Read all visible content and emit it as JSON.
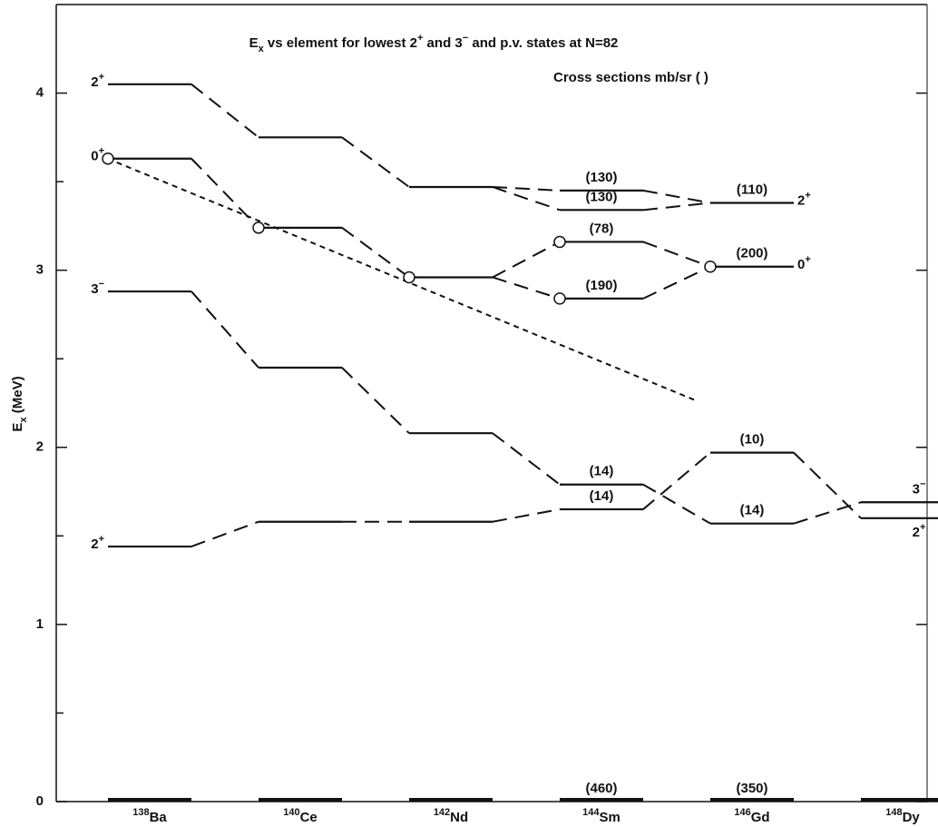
{
  "chart_data": {
    "type": "level-scheme",
    "title": [
      {
        "t": "E"
      },
      {
        "t": "x",
        "s": "sub"
      },
      {
        "t": " vs  element for lowest 2"
      },
      {
        "t": "+",
        "s": "sup"
      },
      {
        "t": " and 3"
      },
      {
        "t": "−",
        "s": "sup"
      },
      {
        "t": " and p.v. states at N=82"
      }
    ],
    "note": "Cross sections mb/sr (    )",
    "y_label": [
      {
        "t": "E"
      },
      {
        "t": "x",
        "s": "sub"
      },
      {
        "t": " (MeV)"
      }
    ],
    "categories": [
      {
        "mass": "138",
        "element": "Ba"
      },
      {
        "mass": "140",
        "element": "Ce"
      },
      {
        "mass": "142",
        "element": "Nd"
      },
      {
        "mass": "144",
        "element": "Sm"
      },
      {
        "mass": "146",
        "element": "Gd"
      },
      {
        "mass": "148",
        "element": "Dy"
      }
    ],
    "ylim": [
      0,
      4.5
    ],
    "yticks": [
      0,
      1,
      2,
      3,
      4
    ],
    "minor_yticks": [
      0.5,
      1.5,
      2.5,
      3.5
    ],
    "color": "#111111",
    "levels": [
      {
        "nucleus": 0,
        "energy": 4.05,
        "spin": {
          "j": "2",
          "p": "+"
        },
        "spin_pos": "left"
      },
      {
        "nucleus": 0,
        "energy": 3.63,
        "spin": {
          "j": "0",
          "p": "+"
        },
        "spin_pos": "left",
        "pv": true
      },
      {
        "nucleus": 0,
        "energy": 2.88,
        "spin": {
          "j": "3",
          "p": "−"
        },
        "spin_pos": "left"
      },
      {
        "nucleus": 0,
        "energy": 1.44,
        "spin": {
          "j": "2",
          "p": "+"
        },
        "spin_pos": "left"
      },
      {
        "nucleus": 0,
        "energy": 0
      },
      {
        "nucleus": 1,
        "energy": 3.75
      },
      {
        "nucleus": 1,
        "energy": 3.24,
        "pv": true
      },
      {
        "nucleus": 1,
        "energy": 2.45
      },
      {
        "nucleus": 1,
        "energy": 1.58
      },
      {
        "nucleus": 1,
        "energy": 0
      },
      {
        "nucleus": 2,
        "energy": 3.47
      },
      {
        "nucleus": 2,
        "energy": 2.96,
        "pv": true
      },
      {
        "nucleus": 2,
        "energy": 2.08
      },
      {
        "nucleus": 2,
        "energy": 1.58
      },
      {
        "nucleus": 2,
        "energy": 0
      },
      {
        "nucleus": 3,
        "energy": 3.45,
        "cross_section": "(130)"
      },
      {
        "nucleus": 3,
        "energy": 3.34,
        "cross_section": "(130)"
      },
      {
        "nucleus": 3,
        "energy": 3.16,
        "cross_section": "(78)",
        "pv": true
      },
      {
        "nucleus": 3,
        "energy": 2.84,
        "cross_section": "(190)",
        "pv": true
      },
      {
        "nucleus": 3,
        "energy": 1.79,
        "cross_section": "(14)"
      },
      {
        "nucleus": 3,
        "energy": 1.65,
        "cross_section": "(14)"
      },
      {
        "nucleus": 3,
        "energy": 0,
        "cross_section": "(460)"
      },
      {
        "nucleus": 4,
        "energy": 3.38,
        "cross_section": "(110)",
        "spin": {
          "j": "2",
          "p": "+"
        },
        "spin_pos": "right"
      },
      {
        "nucleus": 4,
        "energy": 3.02,
        "cross_section": "(200)",
        "spin": {
          "j": "0",
          "p": "+"
        },
        "spin_pos": "right",
        "pv": true
      },
      {
        "nucleus": 4,
        "energy": 1.97,
        "cross_section": "(10)"
      },
      {
        "nucleus": 4,
        "energy": 1.57,
        "cross_section": "(14)"
      },
      {
        "nucleus": 4,
        "energy": 0,
        "cross_section": "(350)"
      },
      {
        "nucleus": 5,
        "energy": 1.69,
        "spin": {
          "j": "3",
          "p": "−"
        },
        "spin_pos": "above"
      },
      {
        "nucleus": 5,
        "energy": 1.6,
        "spin": {
          "j": "2",
          "p": "+"
        },
        "spin_pos": "below"
      },
      {
        "nucleus": 5,
        "energy": 0
      }
    ],
    "links": [
      [
        0,
        5
      ],
      [
        5,
        10
      ],
      [
        10,
        15
      ],
      [
        10,
        16
      ],
      [
        15,
        22
      ],
      [
        16,
        22
      ],
      [
        1,
        6
      ],
      [
        6,
        11
      ],
      [
        11,
        17
      ],
      [
        11,
        18
      ],
      [
        17,
        23
      ],
      [
        18,
        23
      ],
      [
        2,
        7
      ],
      [
        7,
        12
      ],
      [
        12,
        19
      ],
      [
        19,
        25
      ],
      [
        25,
        27
      ],
      [
        3,
        8
      ],
      [
        8,
        13
      ],
      [
        13,
        20
      ],
      [
        20,
        24
      ],
      [
        24,
        28
      ]
    ],
    "pv_trend": {
      "x": [
        -0.28,
        3.64
      ],
      "values": [
        3.63,
        2.26
      ]
    }
  }
}
